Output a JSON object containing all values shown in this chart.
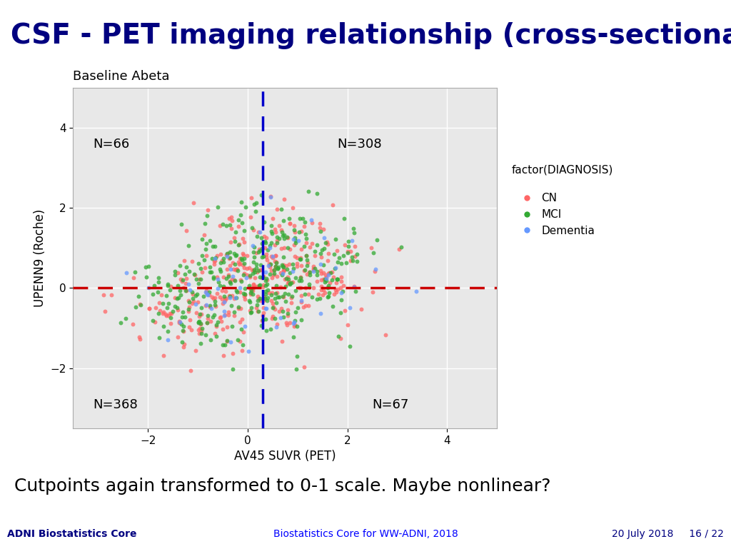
{
  "title": "CSF - PET imaging relationship (cross-sectional)",
  "title_bg": "#FFD700",
  "title_color": "#000080",
  "slide_bg": "#FFFFFF",
  "plot_title": "Baseline Abeta",
  "xlabel": "AV45 SUVR (PET)",
  "ylabel": "UPENN9 (Roche)",
  "xlim": [
    -3.5,
    5.0
  ],
  "ylim": [
    -3.5,
    5.0
  ],
  "xticks": [
    -2,
    0,
    2,
    4
  ],
  "yticks": [
    -2,
    0,
    2,
    4
  ],
  "hline_y": 0,
  "vline_x": 0.3,
  "hline_color": "#CC0000",
  "vline_color": "#0000CC",
  "quadrant_labels": {
    "top_left": "N=66",
    "top_right": "N=308",
    "bottom_left": "N=368",
    "bottom_right": "N=67"
  },
  "legend_title": "factor(DIAGNOSIS)",
  "groups": [
    "CN",
    "MCI",
    "Dementia"
  ],
  "group_colors": [
    "#FF6666",
    "#33AA33",
    "#6699FF"
  ],
  "marker_size": 18,
  "alpha": 0.75,
  "footer_left": "ADNI Biostatistics Core",
  "footer_center": "Biostatistics Core for WW-ADNI, 2018",
  "footer_right": "20 July 2018     16 / 22",
  "bottom_text": "Cutpoints again transformed to 0-1 scale. Maybe nonlinear?",
  "seed": 42,
  "n_cn": 374,
  "n_mci": 374,
  "n_dementia": 61,
  "plot_bg": "#E8E8E8",
  "grid_color": "#FFFFFF"
}
